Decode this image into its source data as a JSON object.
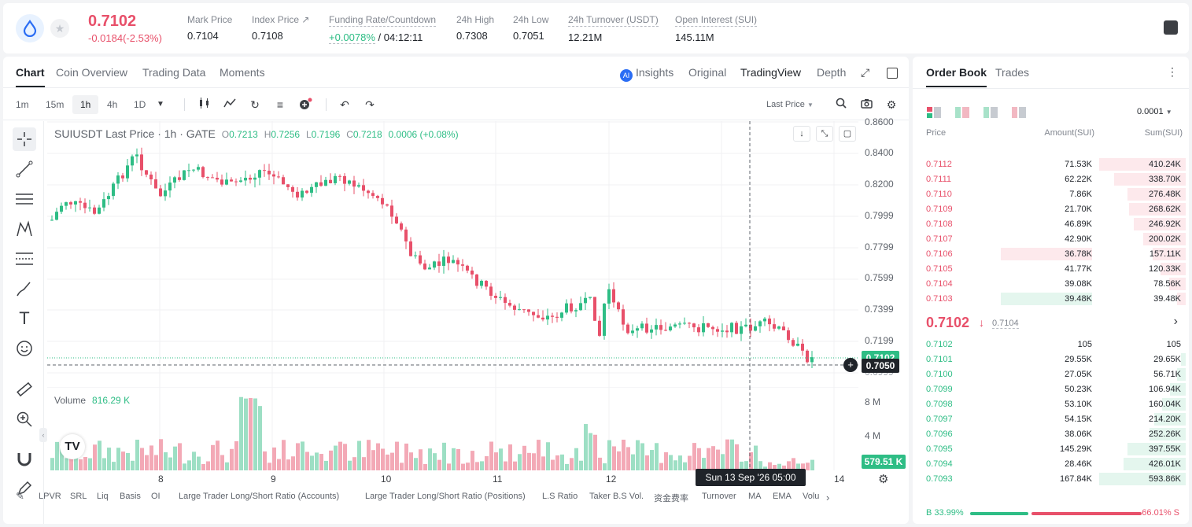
{
  "header": {
    "symbol_icon": "water-drop-icon",
    "last_price": "0.7102",
    "change": "-0.0184(-2.53%)",
    "stats": [
      {
        "label": "Mark Price",
        "value": "0.7104"
      },
      {
        "label": "Index Price ↗",
        "value": "0.7108"
      },
      {
        "label": "Funding Rate/Countdown",
        "value_green": "+0.0078%",
        "value": "/ 04:12:11"
      },
      {
        "label": "24h High",
        "value": "0.7308"
      },
      {
        "label": "24h Low",
        "value": "0.7051"
      },
      {
        "label": "24h Turnover (USDT)",
        "value": "12.21M"
      },
      {
        "label": "Open Interest (SUI)",
        "value": "145.11M"
      }
    ]
  },
  "chart_tabs": [
    "Chart",
    "Coin Overview",
    "Trading Data",
    "Moments"
  ],
  "view_tabs": {
    "insights": "Insights",
    "ai_badge": "AI",
    "original": "Original",
    "tradingview": "TradingView",
    "depth": "Depth"
  },
  "intervals": [
    "1m",
    "15m",
    "1h",
    "4h",
    "1D"
  ],
  "toolbar": {
    "price_source": "Last Price"
  },
  "legend": {
    "title": "SUIUSDT Last Price · 1h · GATE",
    "o_label": "O",
    "o": "0.7213",
    "h_label": "H",
    "h": "0.7256",
    "l_label": "L",
    "l": "0.7196",
    "c_label": "C",
    "c": "0.7218",
    "chg": "0.0006 (+0.08%)"
  },
  "volume": {
    "label": "Volume",
    "value": "816.29 K",
    "tag": "579.51 K",
    "ticks": [
      "8 M",
      "4 M"
    ]
  },
  "price_axis": [
    "0.8600",
    "0.8400",
    "0.8200",
    "0.7999",
    "0.7799",
    "0.7599",
    "0.7399",
    "0.7199",
    "0.6999"
  ],
  "price_tags": {
    "current": "0.7102",
    "cross": "0.7050"
  },
  "x_axis": [
    "8",
    "9",
    "10",
    "11",
    "12",
    "14"
  ],
  "crosshair_time": "Sun 13 Sep '26   05:00",
  "indicators": [
    "LPVR",
    "SRL",
    "Liq",
    "Basis",
    "OI",
    "Large Trader Long/Short Ratio (Accounts)",
    "Large Trader Long/Short Ratio (Positions)",
    "L.S Ratio",
    "Taker B.S Vol.",
    "资金费率",
    "Turnover",
    "MA",
    "EMA",
    "Volu"
  ],
  "order_book": {
    "tabs": [
      "Order Book",
      "Trades"
    ],
    "precision": "0.0001",
    "headers": {
      "price": "Price",
      "amount": "Amount(SUI)",
      "sum": "Sum(SUI)"
    },
    "asks": [
      {
        "price": "0.7112",
        "amount": "71.53K",
        "sum": "410.24K",
        "depth": 1.0
      },
      {
        "price": "0.7111",
        "amount": "62.22K",
        "sum": "338.70K",
        "depth": 0.83
      },
      {
        "price": "0.7110",
        "amount": "7.86K",
        "sum": "276.48K",
        "depth": 0.67
      },
      {
        "price": "0.7109",
        "amount": "21.70K",
        "sum": "268.62K",
        "depth": 0.65
      },
      {
        "price": "0.7108",
        "amount": "46.89K",
        "sum": "246.92K",
        "depth": 0.6
      },
      {
        "price": "0.7107",
        "amount": "42.90K",
        "sum": "200.02K",
        "depth": 0.49
      },
      {
        "price": "0.7106",
        "amount": "36.78K",
        "sum": "157.11K",
        "depth": 0.38
      },
      {
        "price": "0.7105",
        "amount": "41.77K",
        "sum": "120.33K",
        "depth": 0.29
      },
      {
        "price": "0.7104",
        "amount": "39.08K",
        "sum": "78.56K",
        "depth": 0.19
      },
      {
        "price": "0.7103",
        "amount": "39.48K",
        "sum": "39.48K",
        "depth": 0.1
      }
    ],
    "mid": {
      "price": "0.7102",
      "arrow": "↓",
      "mark": "0.7104"
    },
    "bids": [
      {
        "price": "0.7102",
        "amount": "105",
        "sum": "105",
        "depth": 0.0
      },
      {
        "price": "0.7101",
        "amount": "29.55K",
        "sum": "29.65K",
        "depth": 0.05
      },
      {
        "price": "0.7100",
        "amount": "27.05K",
        "sum": "56.71K",
        "depth": 0.1
      },
      {
        "price": "0.7099",
        "amount": "50.23K",
        "sum": "106.94K",
        "depth": 0.18
      },
      {
        "price": "0.7098",
        "amount": "53.10K",
        "sum": "160.04K",
        "depth": 0.27
      },
      {
        "price": "0.7097",
        "amount": "54.15K",
        "sum": "214.20K",
        "depth": 0.36
      },
      {
        "price": "0.7096",
        "amount": "38.06K",
        "sum": "252.26K",
        "depth": 0.42
      },
      {
        "price": "0.7095",
        "amount": "145.29K",
        "sum": "397.55K",
        "depth": 0.67
      },
      {
        "price": "0.7094",
        "amount": "28.46K",
        "sum": "426.01K",
        "depth": 0.72
      },
      {
        "price": "0.7093",
        "amount": "167.84K",
        "sum": "593.86K",
        "depth": 1.0
      }
    ],
    "buy_ratio": "B 33.99%",
    "sell_ratio": "66.01% S"
  },
  "colors": {
    "up": "#2ebd85",
    "down": "#e8506a",
    "brand": "#2a6df4"
  }
}
